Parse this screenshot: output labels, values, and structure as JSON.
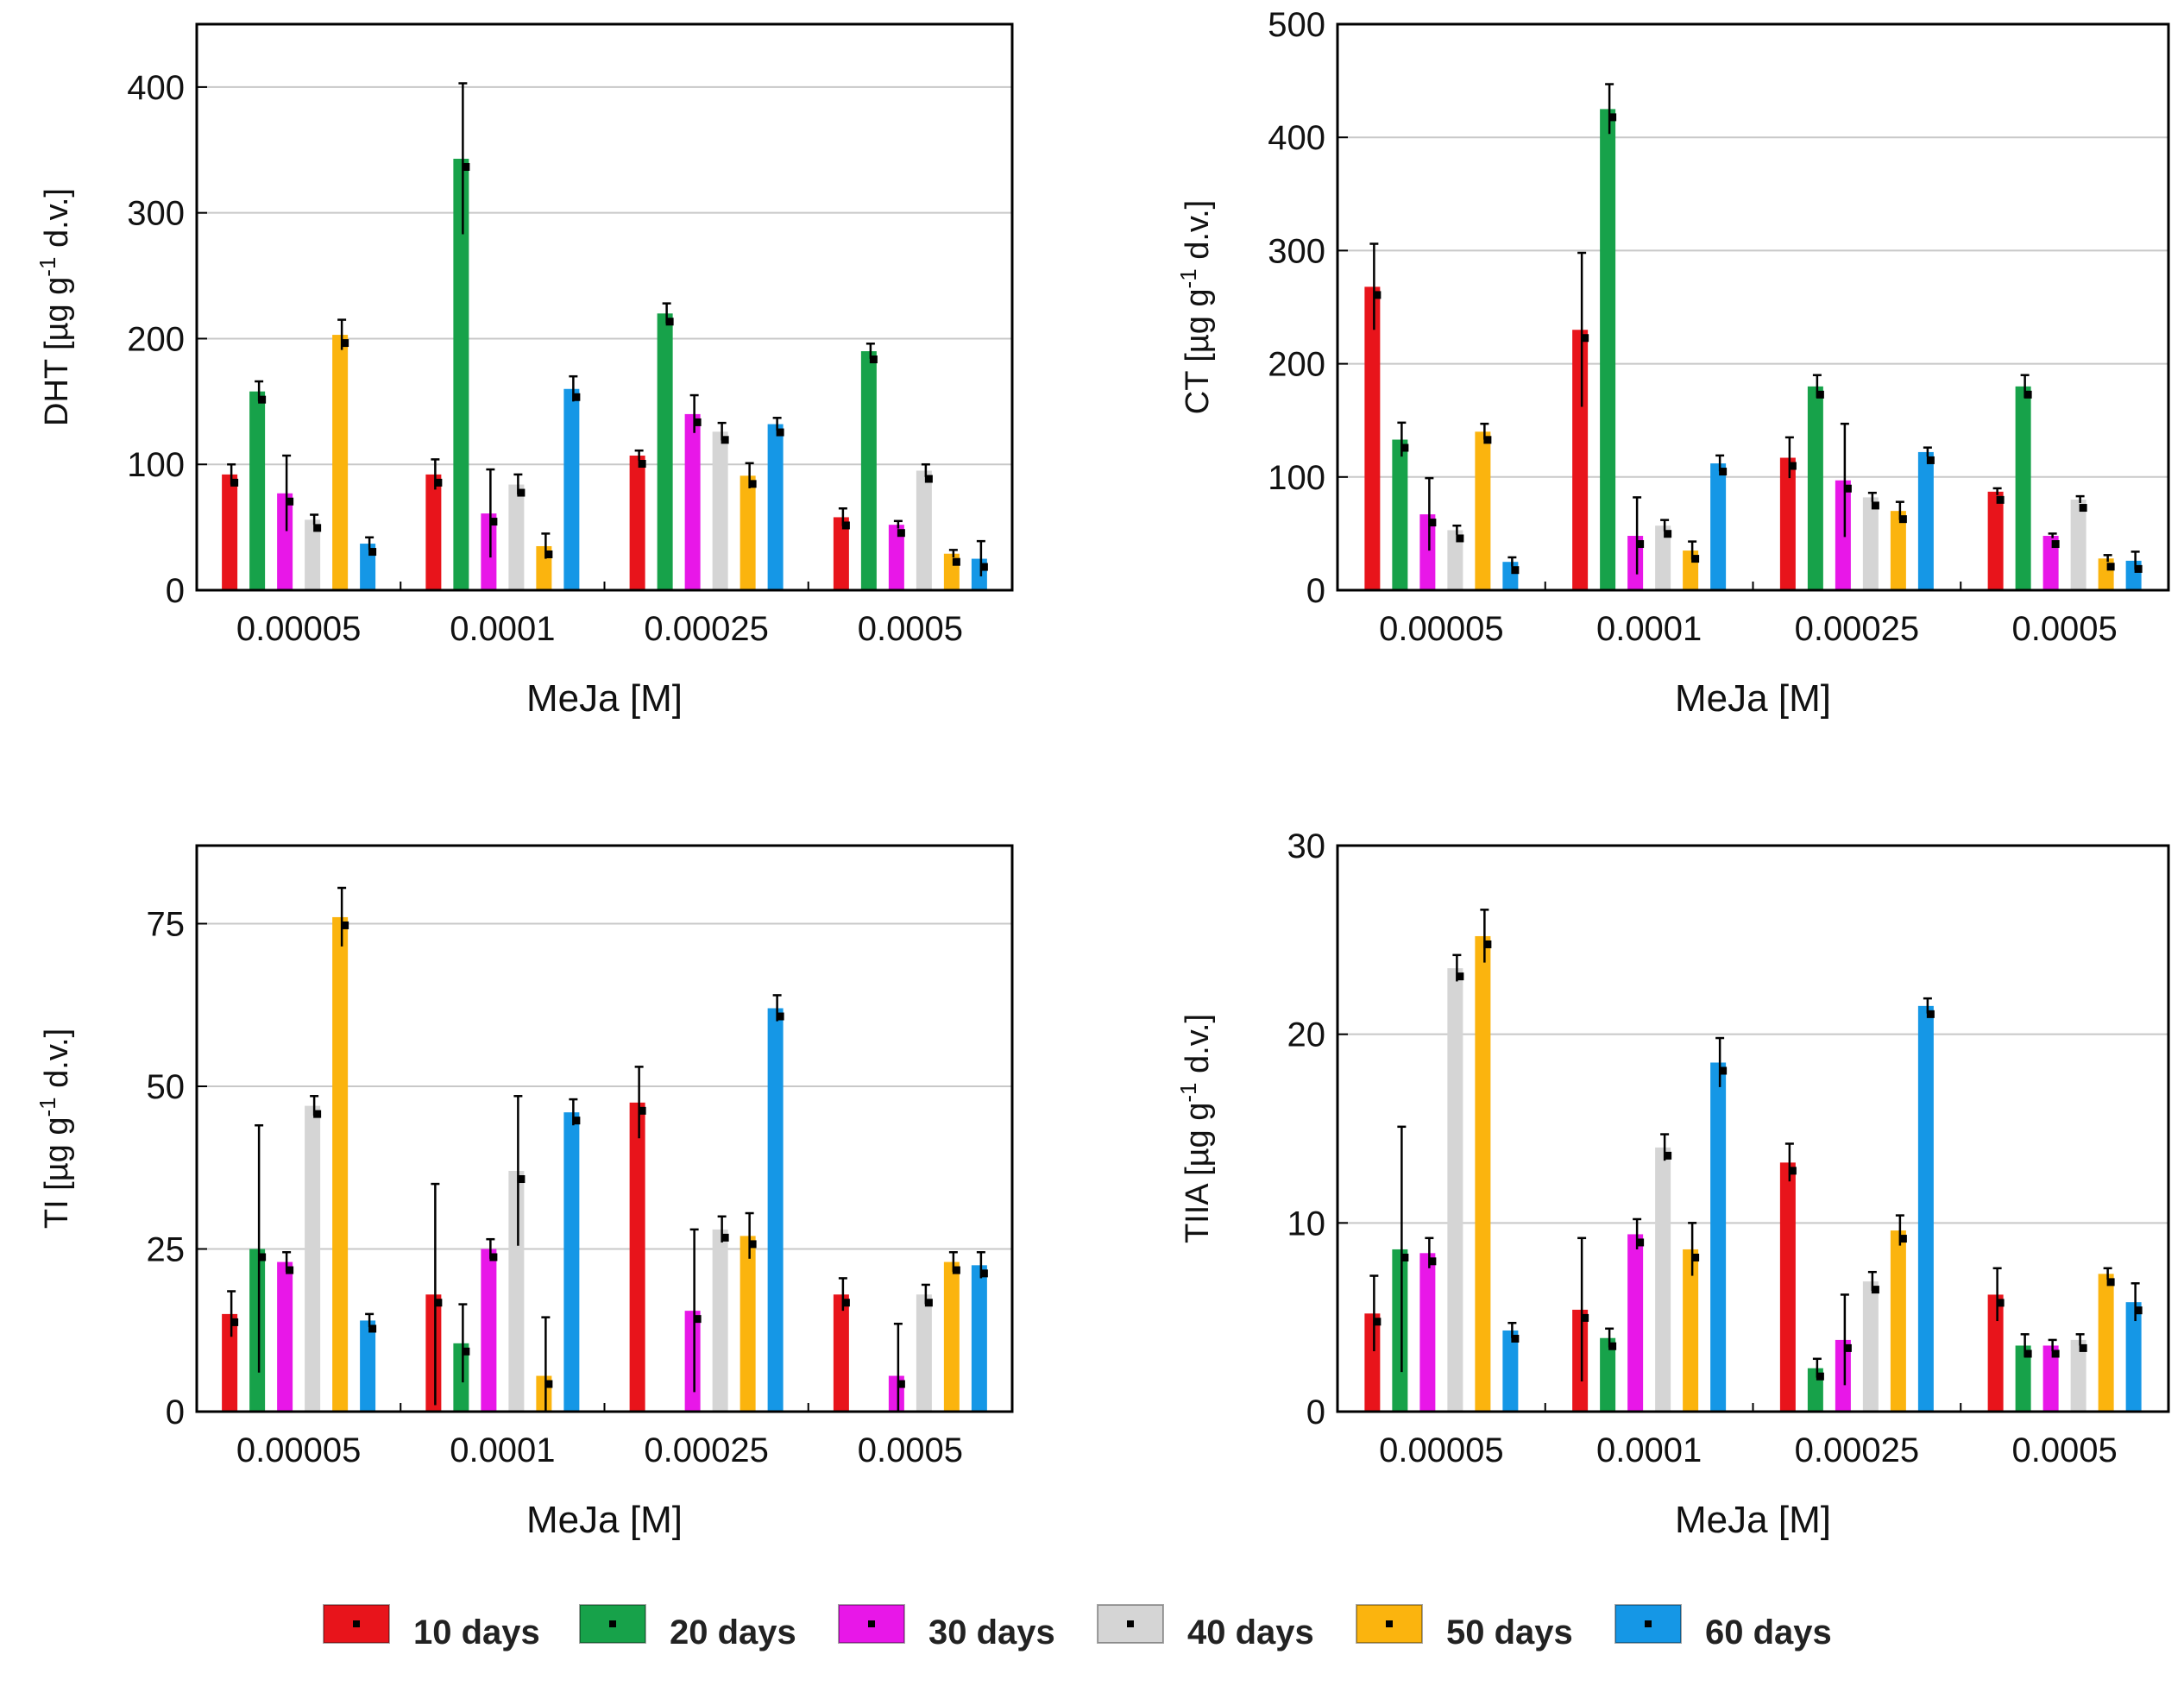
{
  "legend": [
    {
      "label": "10 days",
      "color": "#e8141b"
    },
    {
      "label": "20 days",
      "color": "#17a24a"
    },
    {
      "label": "30 days",
      "color": "#e817e8"
    },
    {
      "label": "40 days",
      "color": "#d5d5d5"
    },
    {
      "label": "50 days",
      "color": "#fbb40e"
    },
    {
      "label": "60 days",
      "color": "#1597e6"
    }
  ],
  "chart_data": [
    {
      "type": "bar",
      "title": "",
      "xlabel_text": "MeJa",
      "xlabel_unit": "[M]",
      "ylabel_main": "DHT [µg g",
      "ylabel_exp": "-1",
      "ylabel_tail": " d.v.]",
      "categories": [
        "0.00005",
        "0.0001",
        "0.00025",
        "0.0005"
      ],
      "ylim": [
        0,
        450
      ],
      "yticks": [
        0,
        100,
        200,
        300,
        400
      ],
      "series": [
        {
          "name": "10 days",
          "values": [
            92,
            92,
            107,
            58
          ],
          "errors": [
            8,
            12,
            4,
            7
          ]
        },
        {
          "name": "20 days",
          "values": [
            158,
            343,
            220,
            190
          ],
          "errors": [
            8,
            60,
            8,
            6
          ]
        },
        {
          "name": "30 days",
          "values": [
            77,
            61,
            140,
            52
          ],
          "errors": [
            30,
            35,
            15,
            3
          ]
        },
        {
          "name": "40 days",
          "values": [
            56,
            84,
            126,
            95
          ],
          "errors": [
            4,
            8,
            7,
            5
          ]
        },
        {
          "name": "50 days",
          "values": [
            203,
            35,
            91,
            29
          ],
          "errors": [
            12,
            10,
            10,
            3
          ]
        },
        {
          "name": "60 days",
          "values": [
            37,
            160,
            132,
            25
          ],
          "errors": [
            5,
            10,
            5,
            14
          ]
        }
      ]
    },
    {
      "type": "bar",
      "title": "",
      "xlabel_text": "MeJa",
      "xlabel_unit": "[M]",
      "ylabel_main": "CT [µg g",
      "ylabel_exp": "-1",
      "ylabel_tail": " d.v.]",
      "categories": [
        "0.00005",
        "0.0001",
        "0.00025",
        "0.0005"
      ],
      "ylim": [
        0,
        500
      ],
      "yticks": [
        0,
        100,
        200,
        300,
        400,
        500
      ],
      "series": [
        {
          "name": "10 days",
          "values": [
            268,
            230,
            117,
            87
          ],
          "errors": [
            38,
            68,
            18,
            3
          ]
        },
        {
          "name": "20 days",
          "values": [
            133,
            425,
            180,
            180
          ],
          "errors": [
            15,
            22,
            10,
            10
          ]
        },
        {
          "name": "30 days",
          "values": [
            67,
            48,
            97,
            48
          ],
          "errors": [
            32,
            34,
            50,
            2
          ]
        },
        {
          "name": "40 days",
          "values": [
            53,
            57,
            82,
            80
          ],
          "errors": [
            4,
            5,
            4,
            3
          ]
        },
        {
          "name": "50 days",
          "values": [
            140,
            35,
            70,
            28
          ],
          "errors": [
            7,
            8,
            8,
            3
          ]
        },
        {
          "name": "60 days",
          "values": [
            25,
            112,
            122,
            26
          ],
          "errors": [
            4,
            7,
            4,
            8
          ]
        }
      ]
    },
    {
      "type": "bar",
      "title": "",
      "xlabel_text": "MeJa",
      "xlabel_unit": "[M]",
      "ylabel_main": "TI [µg g",
      "ylabel_exp": "-1",
      "ylabel_tail": " d.v.]",
      "categories": [
        "0.00005",
        "0.0001",
        "0.00025",
        "0.0005"
      ],
      "ylim": [
        0,
        87
      ],
      "yticks": [
        0,
        25,
        50,
        75
      ],
      "series": [
        {
          "name": "10 days",
          "values": [
            15,
            18,
            47.5,
            18
          ],
          "errors": [
            3.5,
            17,
            5.5,
            2.5
          ]
        },
        {
          "name": "20 days",
          "values": [
            25,
            10.5,
            0,
            0
          ],
          "errors": [
            19,
            6,
            0,
            0
          ]
        },
        {
          "name": "30 days",
          "values": [
            23,
            25,
            15.5,
            5.5
          ],
          "errors": [
            1.5,
            1.5,
            12.5,
            8
          ]
        },
        {
          "name": "40 days",
          "values": [
            47,
            37,
            28,
            18
          ],
          "errors": [
            1.5,
            11.5,
            2,
            1.5
          ]
        },
        {
          "name": "50 days",
          "values": [
            76,
            5.5,
            27,
            23
          ],
          "errors": [
            4.5,
            9,
            3.5,
            1.5
          ]
        },
        {
          "name": "60 days",
          "values": [
            14,
            46,
            62,
            22.5
          ],
          "errors": [
            1,
            2,
            2,
            2
          ]
        }
      ]
    },
    {
      "type": "bar",
      "title": "",
      "xlabel_text": "MeJa",
      "xlabel_unit": "[M]",
      "ylabel_main": "TIIA [µg g",
      "ylabel_exp": "-1",
      "ylabel_tail": " d.v.]",
      "categories": [
        "0.00005",
        "0.0001",
        "0.00025",
        "0.0005"
      ],
      "ylim": [
        0,
        30
      ],
      "yticks": [
        0,
        10,
        20,
        30
      ],
      "series": [
        {
          "name": "10 days",
          "values": [
            5.2,
            5.4,
            13.2,
            6.2
          ],
          "errors": [
            2,
            3.8,
            1,
            1.4
          ]
        },
        {
          "name": "20 days",
          "values": [
            8.6,
            3.9,
            2.3,
            3.5
          ],
          "errors": [
            6.5,
            0.5,
            0.5,
            0.6
          ]
        },
        {
          "name": "30 days",
          "values": [
            8.4,
            9.4,
            3.8,
            3.5
          ],
          "errors": [
            0.8,
            0.8,
            2.4,
            0.3
          ]
        },
        {
          "name": "40 days",
          "values": [
            23.5,
            14,
            6.9,
            3.8
          ],
          "errors": [
            0.7,
            0.7,
            0.5,
            0.3
          ]
        },
        {
          "name": "50 days",
          "values": [
            25.2,
            8.6,
            9.6,
            7.3
          ],
          "errors": [
            1.4,
            1.4,
            0.8,
            0.3
          ]
        },
        {
          "name": "60 days",
          "values": [
            4.3,
            18.5,
            21.5,
            5.8
          ],
          "errors": [
            0.4,
            1.3,
            0.4,
            1
          ]
        }
      ]
    }
  ]
}
